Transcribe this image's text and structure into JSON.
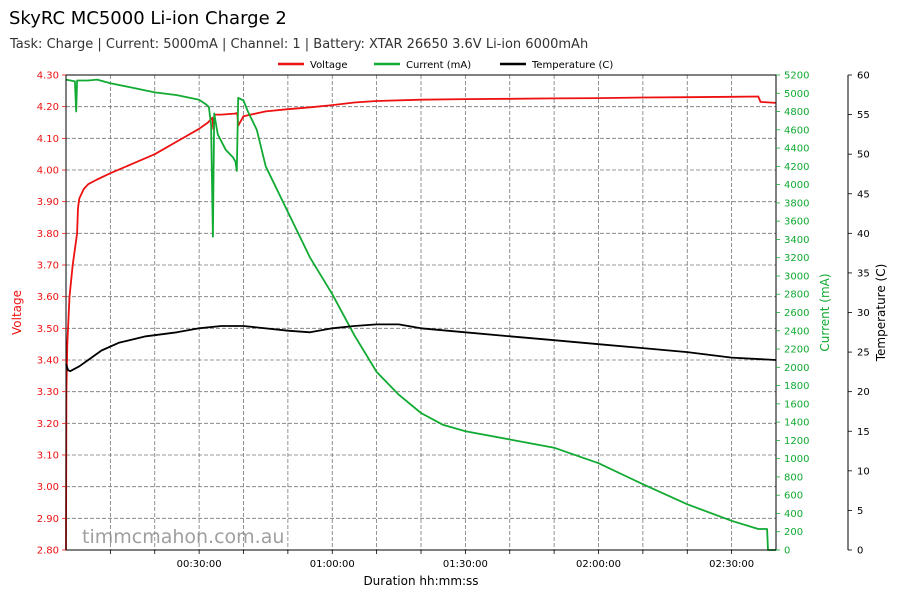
{
  "title": "SkyRC MC5000 Li-ion Charge 2",
  "subtitle": "Task: Charge | Current: 5000mA | Channel: 1 | Battery: XTAR 26650 3.6V Li-ion 6000mAh",
  "watermark": "timmcmahon.com.au",
  "colors": {
    "voltage": "#ee1111",
    "current": "#11aa33",
    "temperature": "#000000",
    "grid": "#777777"
  },
  "chart_data": {
    "type": "line",
    "title": "SkyRC MC5000 Li-ion Charge 2",
    "xlabel": "Duration hh:mm:ss",
    "x_unit": "minutes",
    "xlim": [
      0,
      160
    ],
    "x_ticks": [
      {
        "value": 30,
        "label": "00:30:00"
      },
      {
        "value": 60,
        "label": "01:00:00"
      },
      {
        "value": 90,
        "label": "01:30:00"
      },
      {
        "value": 120,
        "label": "02:00:00"
      },
      {
        "value": 150,
        "label": "02:30:00"
      }
    ],
    "grid": true,
    "legend_position": "top-center",
    "axes": {
      "voltage": {
        "label": "Voltage",
        "side": "left",
        "ylim": [
          2.8,
          4.3
        ],
        "ticks": [
          "2.80",
          "2.90",
          "3.00",
          "3.10",
          "3.20",
          "3.30",
          "3.40",
          "3.50",
          "3.60",
          "3.70",
          "3.80",
          "3.90",
          "4.00",
          "4.10",
          "4.20",
          "4.30"
        ]
      },
      "current": {
        "label": "Current (mA)",
        "side": "right",
        "ylim": [
          0,
          5200
        ],
        "ticks": [
          "0",
          "200",
          "400",
          "600",
          "800",
          "1000",
          "1200",
          "1400",
          "1600",
          "1800",
          "2000",
          "2200",
          "2400",
          "2600",
          "2800",
          "3000",
          "3200",
          "3400",
          "3600",
          "3800",
          "4000",
          "4200",
          "4400",
          "4600",
          "4800",
          "5000",
          "5200"
        ]
      },
      "temperature": {
        "label": "Temperature (C)",
        "side": "right-outer",
        "ylim": [
          0,
          60
        ],
        "ticks": [
          "0",
          "5",
          "10",
          "15",
          "20",
          "25",
          "30",
          "35",
          "40",
          "45",
          "50",
          "55",
          "60"
        ]
      }
    },
    "series": [
      {
        "name": "Voltage",
        "axis": "voltage",
        "points": [
          [
            0,
            2.8
          ],
          [
            0.1,
            3.3
          ],
          [
            0.3,
            3.45
          ],
          [
            0.8,
            3.6
          ],
          [
            1.5,
            3.7
          ],
          [
            2.3,
            3.78
          ],
          [
            2.5,
            3.8
          ],
          [
            2.7,
            3.88
          ],
          [
            3,
            3.91
          ],
          [
            4,
            3.94
          ],
          [
            5,
            3.955
          ],
          [
            7,
            3.97
          ],
          [
            10,
            3.99
          ],
          [
            15,
            4.02
          ],
          [
            20,
            4.05
          ],
          [
            25,
            4.09
          ],
          [
            30,
            4.13
          ],
          [
            32,
            4.15
          ],
          [
            33,
            4.165
          ],
          [
            33.2,
            4.13
          ],
          [
            33.5,
            4.175
          ],
          [
            35,
            4.175
          ],
          [
            38,
            4.178
          ],
          [
            38.6,
            4.18
          ],
          [
            38.8,
            4.14
          ],
          [
            40,
            4.17
          ],
          [
            45,
            4.185
          ],
          [
            50,
            4.192
          ],
          [
            55,
            4.198
          ],
          [
            60,
            4.205
          ],
          [
            65,
            4.213
          ],
          [
            70,
            4.218
          ],
          [
            80,
            4.222
          ],
          [
            90,
            4.224
          ],
          [
            100,
            4.225
          ],
          [
            110,
            4.226
          ],
          [
            120,
            4.227
          ],
          [
            130,
            4.229
          ],
          [
            140,
            4.23
          ],
          [
            150,
            4.231
          ],
          [
            156,
            4.232
          ],
          [
            156.5,
            4.215
          ],
          [
            160,
            4.212
          ]
        ]
      },
      {
        "name": "Current (mA)",
        "axis": "current",
        "points": [
          [
            0,
            5150
          ],
          [
            2,
            5130
          ],
          [
            2.3,
            4800
          ],
          [
            2.5,
            5140
          ],
          [
            5,
            5140
          ],
          [
            7,
            5150
          ],
          [
            10,
            5110
          ],
          [
            15,
            5060
          ],
          [
            20,
            5010
          ],
          [
            25,
            4980
          ],
          [
            30,
            4930
          ],
          [
            31.5,
            4880
          ],
          [
            32.2,
            4850
          ],
          [
            32.7,
            4650
          ],
          [
            33.1,
            3430
          ],
          [
            33.4,
            4780
          ],
          [
            34.2,
            4550
          ],
          [
            36,
            4380
          ],
          [
            37.6,
            4300
          ],
          [
            38.2,
            4250
          ],
          [
            38.5,
            4150
          ],
          [
            38.8,
            4950
          ],
          [
            40,
            4920
          ],
          [
            41,
            4800
          ],
          [
            43,
            4600
          ],
          [
            45,
            4200
          ],
          [
            50,
            3700
          ],
          [
            55,
            3200
          ],
          [
            60,
            2800
          ],
          [
            65,
            2350
          ],
          [
            70,
            1950
          ],
          [
            75,
            1700
          ],
          [
            80,
            1500
          ],
          [
            85,
            1370
          ],
          [
            90,
            1300
          ],
          [
            100,
            1210
          ],
          [
            110,
            1120
          ],
          [
            120,
            950
          ],
          [
            130,
            720
          ],
          [
            140,
            500
          ],
          [
            150,
            320
          ],
          [
            156,
            230
          ],
          [
            158,
            230
          ],
          [
            158.2,
            0
          ],
          [
            160,
            0
          ]
        ]
      },
      {
        "name": "Temperature (C)",
        "axis": "temperature",
        "points": [
          [
            0,
            23.5
          ],
          [
            0.5,
            22.7
          ],
          [
            1,
            22.6
          ],
          [
            3,
            23.2
          ],
          [
            5,
            24
          ],
          [
            8,
            25.2
          ],
          [
            12,
            26.2
          ],
          [
            18,
            27
          ],
          [
            25,
            27.5
          ],
          [
            30,
            28
          ],
          [
            35,
            28.3
          ],
          [
            40,
            28.3
          ],
          [
            50,
            27.7
          ],
          [
            55,
            27.5
          ],
          [
            60,
            28
          ],
          [
            65,
            28.3
          ],
          [
            70,
            28.5
          ],
          [
            75,
            28.5
          ],
          [
            80,
            28
          ],
          [
            90,
            27.5
          ],
          [
            100,
            27
          ],
          [
            110,
            26.5
          ],
          [
            120,
            26
          ],
          [
            130,
            25.5
          ],
          [
            140,
            25
          ],
          [
            150,
            24.3
          ],
          [
            160,
            24
          ]
        ]
      }
    ]
  }
}
